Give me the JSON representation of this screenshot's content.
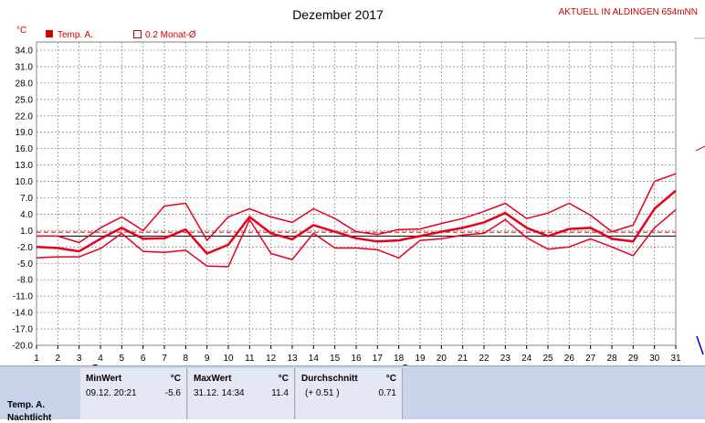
{
  "header": {
    "title": "Dezember 2017",
    "station": "AKTUELL IN ALDINGEN 654mNN",
    "unit": "°C",
    "legend": [
      {
        "label": "Temp. A.",
        "color": "#d40000",
        "filled": true
      },
      {
        "label": "0.2 Monat-Ø",
        "color": "#d40000",
        "filled": false
      }
    ]
  },
  "chart_data": {
    "type": "line",
    "x": [
      1,
      2,
      3,
      4,
      5,
      6,
      7,
      8,
      9,
      10,
      11,
      12,
      13,
      14,
      15,
      16,
      17,
      18,
      19,
      20,
      21,
      22,
      23,
      24,
      25,
      26,
      27,
      28,
      29,
      30,
      31
    ],
    "x_ticks": [
      "1",
      "2",
      "3",
      "4",
      "5",
      "6",
      "7",
      "8",
      "9",
      "10",
      "11",
      "12",
      "13",
      "14",
      "15",
      "16",
      "17",
      "18",
      "19",
      "20",
      "21",
      "22",
      "23",
      "24",
      "25",
      "26",
      "27",
      "28",
      "29",
      "30",
      "31"
    ],
    "ylim": [
      -20,
      35.5
    ],
    "y_ticks": [
      34.0,
      31.0,
      28.0,
      25.0,
      22.0,
      19.0,
      16.0,
      13.0,
      10.0,
      7.0,
      4.0,
      1.0,
      -2.0,
      -5.0,
      -8.0,
      -11.0,
      -14.0,
      -17.0,
      -20.0
    ],
    "y_tick_labels": [
      "34.0",
      "31.0",
      "28.0",
      "25.0",
      "22.0",
      "19.0",
      "16.0",
      "13.0",
      "10.0",
      "7.0",
      "4.0",
      "1.0",
      "-2.0",
      "-5.0",
      "-8.0",
      "-11.0",
      "-14.0",
      "-17.0",
      "-20.0"
    ],
    "grid": true,
    "series": [
      {
        "role": "max",
        "width": 1.5,
        "values": [
          0.0,
          0.0,
          -1.2,
          1.5,
          3.5,
          1.0,
          5.5,
          6.0,
          -0.8,
          3.5,
          5.0,
          3.5,
          2.5,
          5.0,
          3.2,
          0.8,
          0.3,
          1.2,
          1.3,
          2.3,
          3.2,
          4.5,
          6.0,
          3.2,
          4.2,
          6.0,
          3.8,
          0.8,
          2.0,
          10.0,
          11.4
        ]
      },
      {
        "role": "mean",
        "width": 2.5,
        "values": [
          -2.0,
          -2.2,
          -2.8,
          -0.5,
          1.5,
          -0.5,
          -0.4,
          1.2,
          -3.2,
          -1.6,
          3.5,
          0.5,
          -0.6,
          2.0,
          0.8,
          -0.4,
          -1.0,
          -0.8,
          0.0,
          0.8,
          1.5,
          2.5,
          4.2,
          1.5,
          0.0,
          1.3,
          1.5,
          -0.5,
          -1.0,
          5.0,
          8.3
        ]
      },
      {
        "role": "min",
        "width": 1.5,
        "values": [
          -4.0,
          -3.8,
          -3.8,
          -2.3,
          0.5,
          -2.8,
          -3.0,
          -2.6,
          -5.5,
          -5.6,
          3.0,
          -3.2,
          -4.3,
          0.5,
          -2.2,
          -2.2,
          -2.5,
          -4.0,
          -0.8,
          -0.5,
          0.2,
          0.5,
          3.0,
          -0.3,
          -2.4,
          -2.0,
          -0.5,
          -2.0,
          -3.6,
          1.5,
          4.8
        ]
      }
    ],
    "reference_lines": [
      {
        "value": 0.71,
        "color": "#d40000",
        "style": "dashed"
      },
      {
        "value": 0.0,
        "color": "#000000",
        "style": "solid"
      }
    ],
    "moon_markers": [
      {
        "day": 3.75,
        "phase": "full"
      },
      {
        "day": 18.3,
        "phase": "new"
      }
    ]
  },
  "stats": {
    "row_label": "Temp. A.",
    "row_label2": "Nachtlicht",
    "min_title": "MinWert",
    "min_unit": "°C",
    "min_time": "09.12.  20:21",
    "min_value": "-5.6",
    "max_title": "MaxWert",
    "max_unit": "°C",
    "max_time": "31.12.  14:34",
    "max_value": "11.4",
    "avg_title": "Durchschnitt",
    "avg_unit": "°C",
    "avg_delta": "(+ 0.51 )",
    "avg_value": "0.71"
  },
  "colors": {
    "series": "#e8001c",
    "grid": "#8c8c8c",
    "plot_bg": "#ffffff",
    "panel_bg": "#c9d3ea"
  }
}
